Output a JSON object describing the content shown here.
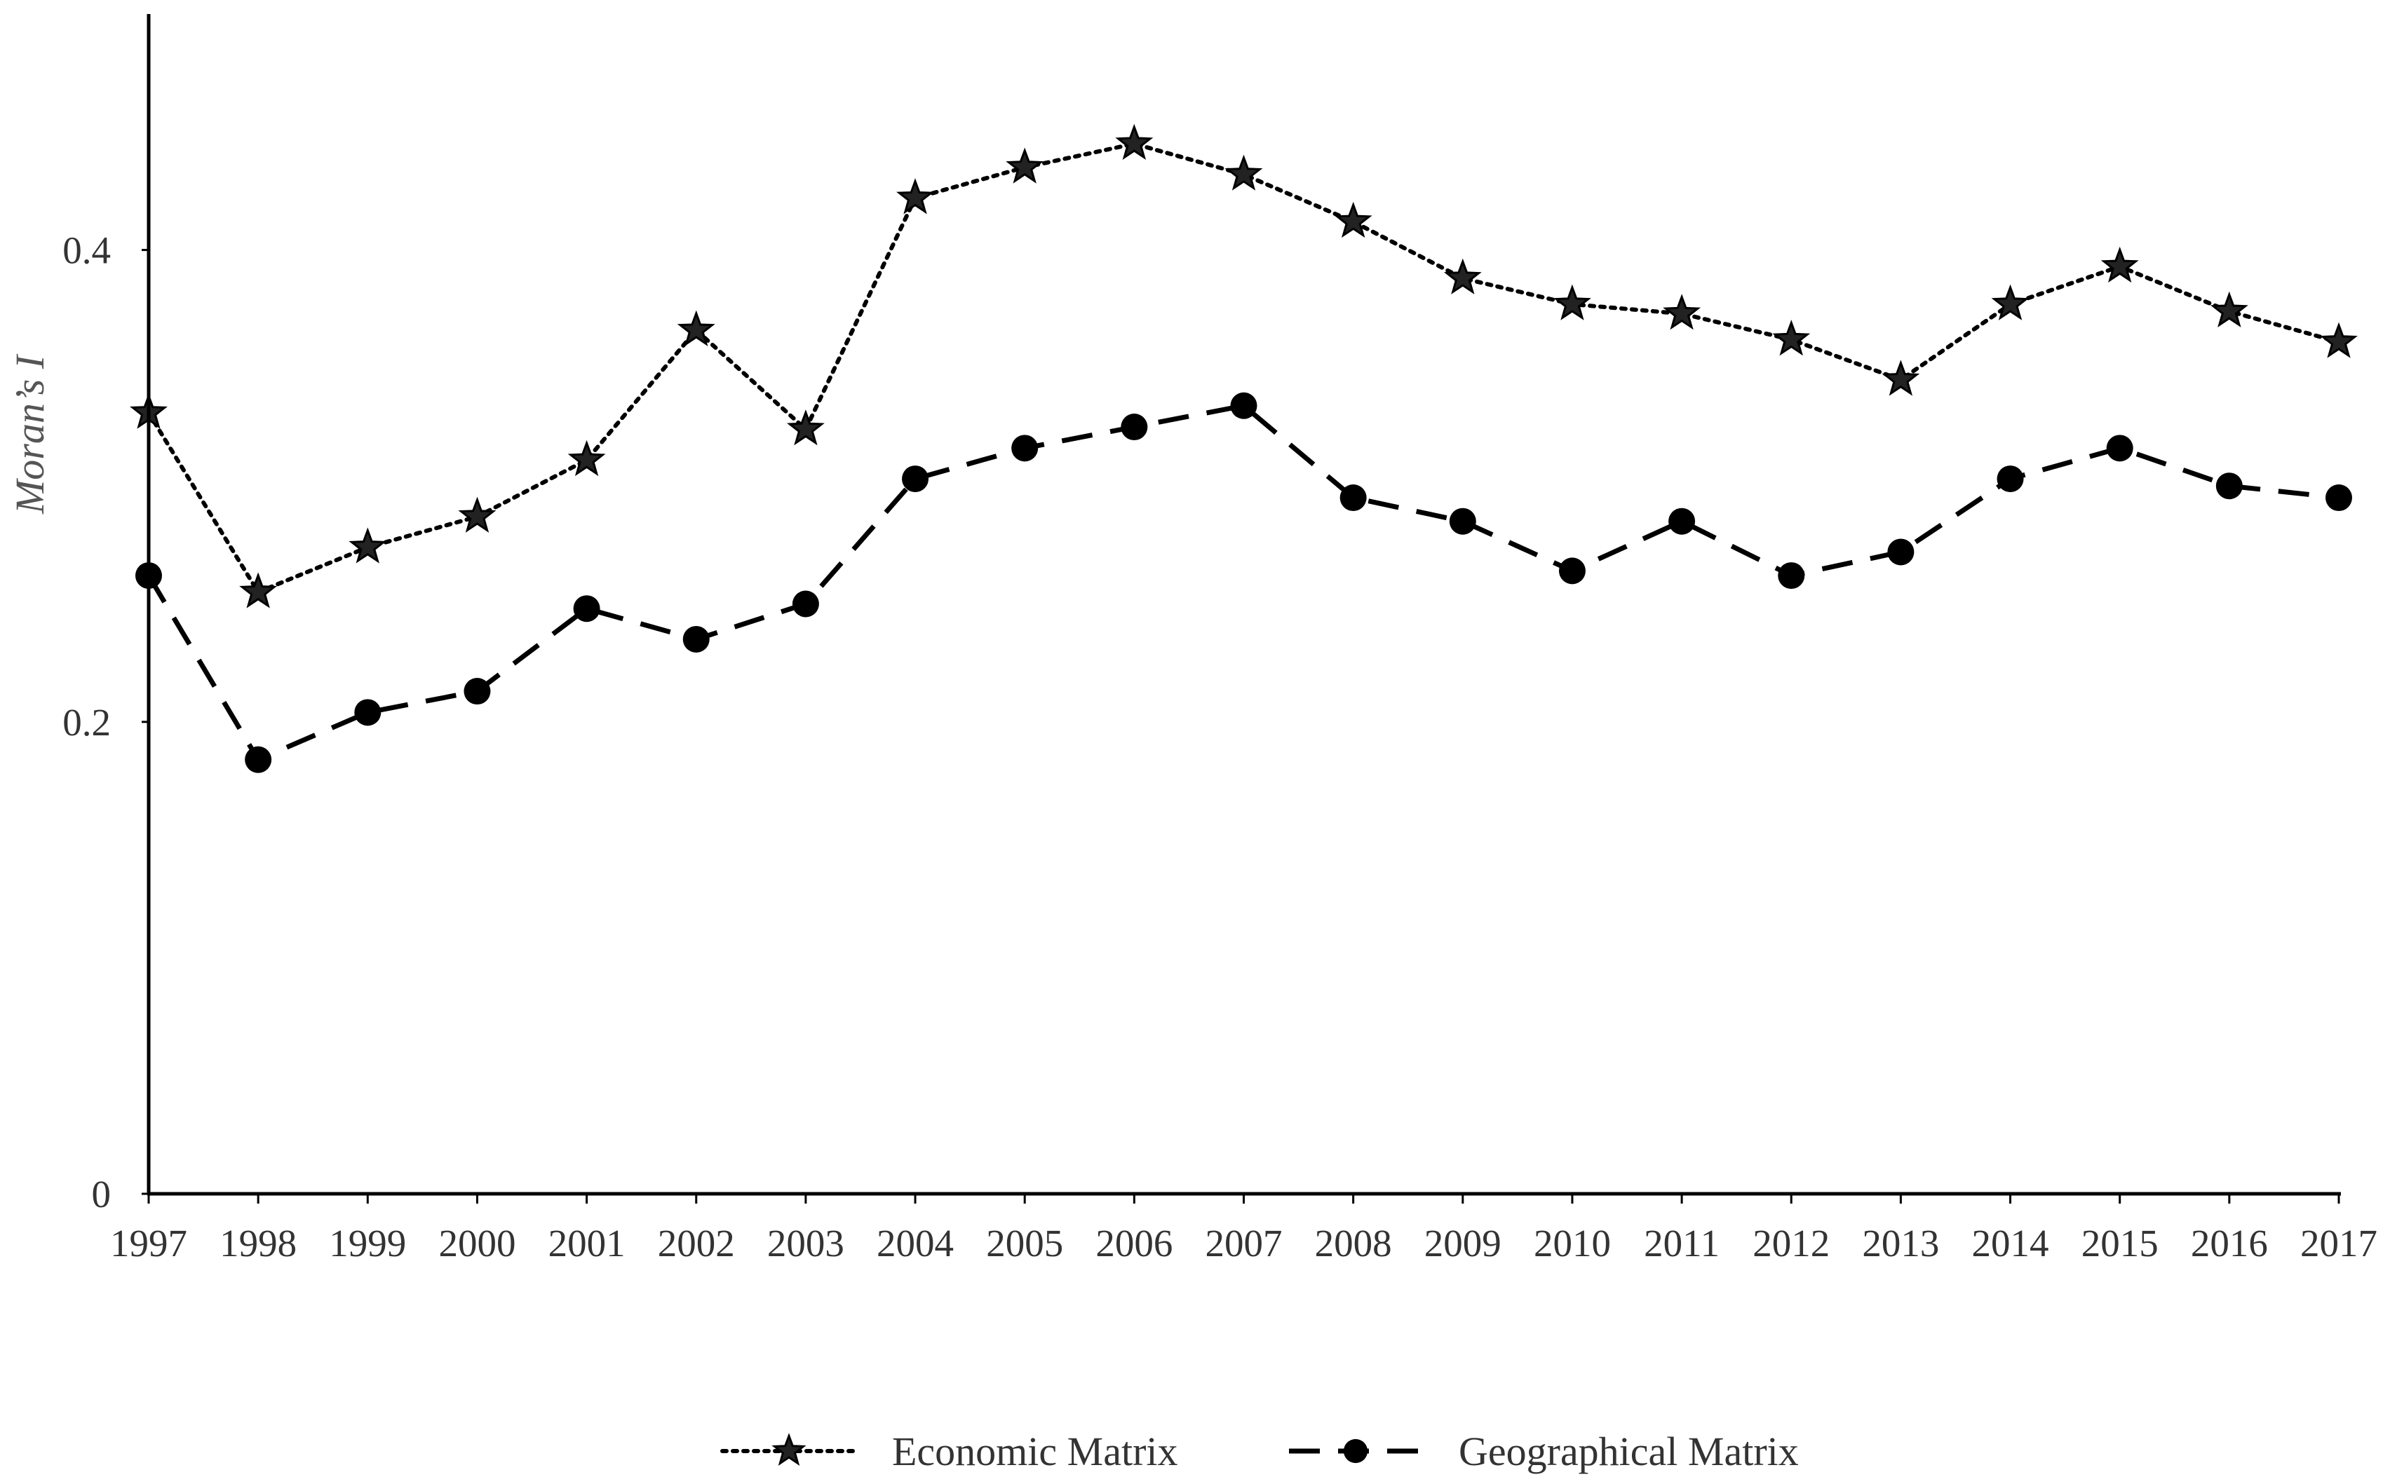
{
  "chart_data": {
    "type": "line",
    "title": "",
    "xlabel": "",
    "ylabel": "Moran’s I",
    "categories": [
      "1997",
      "1998",
      "1999",
      "2000",
      "2001",
      "2002",
      "2003",
      "2004",
      "2005",
      "2006",
      "2007",
      "2008",
      "2009",
      "2010",
      "2011",
      "2012",
      "2013",
      "2014",
      "2015",
      "2016",
      "2017"
    ],
    "ylim": [
      0,
      0.5
    ],
    "yticks": [
      {
        "value": 0,
        "label": "0"
      },
      {
        "value": 0.2,
        "label": "0.2"
      },
      {
        "value": 0.4,
        "label": "0.4"
      }
    ],
    "grid": false,
    "legend_position": "bottom",
    "series": [
      {
        "name": "Economic Matrix",
        "color": "#000000",
        "line_style": "dotted",
        "marker": "star",
        "values": [
          0.331,
          0.255,
          0.274,
          0.287,
          0.311,
          0.366,
          0.324,
          0.422,
          0.435,
          0.445,
          0.432,
          0.412,
          0.388,
          0.377,
          0.373,
          0.362,
          0.345,
          0.377,
          0.393,
          0.374,
          0.361
        ]
      },
      {
        "name": "Geographical Matrix",
        "color": "#000000",
        "line_style": "dashed",
        "marker": "circle",
        "values": [
          0.262,
          0.184,
          0.204,
          0.213,
          0.248,
          0.235,
          0.25,
          0.303,
          0.316,
          0.325,
          0.334,
          0.295,
          0.285,
          0.264,
          0.285,
          0.262,
          0.272,
          0.303,
          0.316,
          0.3,
          0.295
        ]
      }
    ]
  }
}
